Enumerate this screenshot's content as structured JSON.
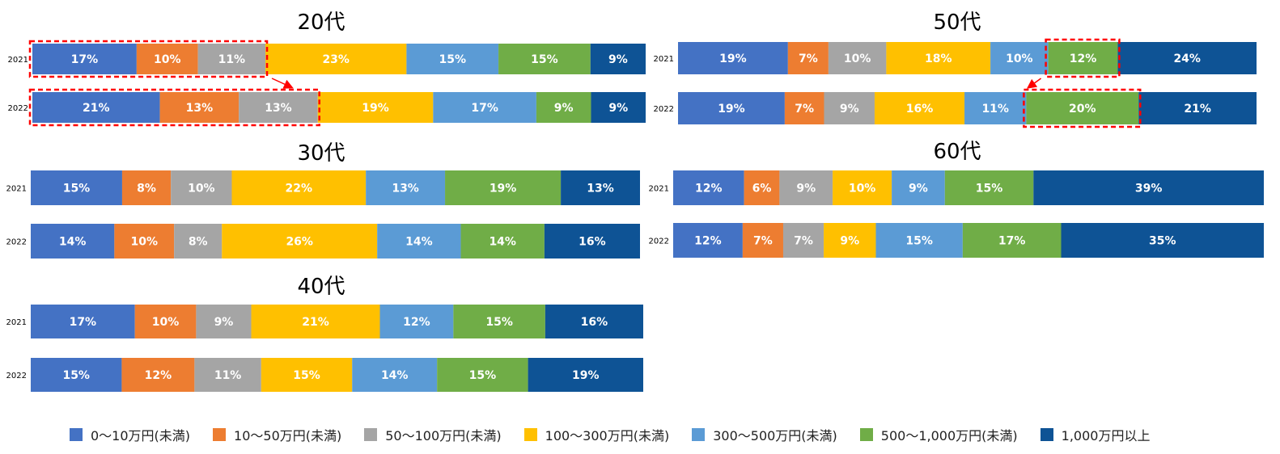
{
  "chart_data": {
    "type": "bar",
    "orientation": "horizontal",
    "stacked": "percent",
    "data_labels": true,
    "legend_position": "bottom",
    "categories": [
      "0～10万円(未満)",
      "10～50万円(未満)",
      "50～100万円(未満)",
      "100～300万円(未満)",
      "300～500万円(未満)",
      "500～1,000万円(未満)",
      "1,000万円以上"
    ],
    "colors": [
      "#4472C4",
      "#ED7D31",
      "#A5A5A5",
      "#FFC000",
      "#5B9BD5",
      "#70AD47",
      "#0E5395"
    ],
    "panels": [
      {
        "title": "20代",
        "rows": [
          {
            "year": "2021",
            "values": [
              17,
              10,
              11,
              23,
              15,
              15,
              9
            ],
            "labels": [
              "17%",
              "10%",
              "11%",
              "23%",
              "15%",
              "15%",
              "9%"
            ]
          },
          {
            "year": "2022",
            "values": [
              21,
              13,
              13,
              19,
              17,
              9,
              9
            ],
            "labels": [
              "21%",
              "13%",
              "13%",
              "19%",
              "17%",
              "9%",
              "9%"
            ]
          }
        ],
        "highlight": {
          "segments": [
            0,
            1,
            2
          ],
          "arrow": "2021→2022"
        }
      },
      {
        "title": "30代",
        "rows": [
          {
            "year": "2021",
            "values": [
              15,
              8,
              10,
              22,
              13,
              19,
              13
            ],
            "labels": [
              "15%",
              "8%",
              "10%",
              "22%",
              "13%",
              "19%",
              "13%"
            ]
          },
          {
            "year": "2022",
            "values": [
              14,
              10,
              8,
              26,
              14,
              14,
              16
            ],
            "labels": [
              "14%",
              "10%",
              "8%",
              "26%",
              "14%",
              "14%",
              "16%"
            ]
          }
        ]
      },
      {
        "title": "40代",
        "rows": [
          {
            "year": "2021",
            "values": [
              17,
              10,
              9,
              21,
              12,
              15,
              16
            ],
            "labels": [
              "17%",
              "10%",
              "9%",
              "21%",
              "12%",
              "15%",
              "16%"
            ]
          },
          {
            "year": "2022",
            "values": [
              15,
              12,
              11,
              15,
              14,
              15,
              19
            ],
            "labels": [
              "15%",
              "12%",
              "11%",
              "15%",
              "14%",
              "15%",
              "19%"
            ]
          }
        ]
      },
      {
        "title": "50代",
        "rows": [
          {
            "year": "2021",
            "values": [
              19,
              7,
              10,
              18,
              10,
              12,
              24
            ],
            "labels": [
              "19%",
              "7%",
              "10%",
              "18%",
              "10%",
              "12%",
              "24%"
            ]
          },
          {
            "year": "2022",
            "values": [
              19,
              7,
              9,
              16,
              11,
              20,
              21
            ],
            "labels": [
              "19%",
              "7%",
              "9%",
              "16%",
              "11%",
              "20%",
              "21%"
            ]
          }
        ],
        "highlight": {
          "segments": [
            5
          ],
          "arrow": "2021→2022"
        }
      },
      {
        "title": "60代",
        "rows": [
          {
            "year": "2021",
            "values": [
              12,
              6,
              9,
              10,
              9,
              15,
              39
            ],
            "labels": [
              "12%",
              "6%",
              "9%",
              "10%",
              "9%",
              "15%",
              "39%"
            ]
          },
          {
            "year": "2022",
            "values": [
              12,
              7,
              7,
              9,
              15,
              17,
              35
            ],
            "labels": [
              "12%",
              "7%",
              "7%",
              "9%",
              "15%",
              "17%",
              "35%"
            ]
          }
        ]
      }
    ]
  }
}
